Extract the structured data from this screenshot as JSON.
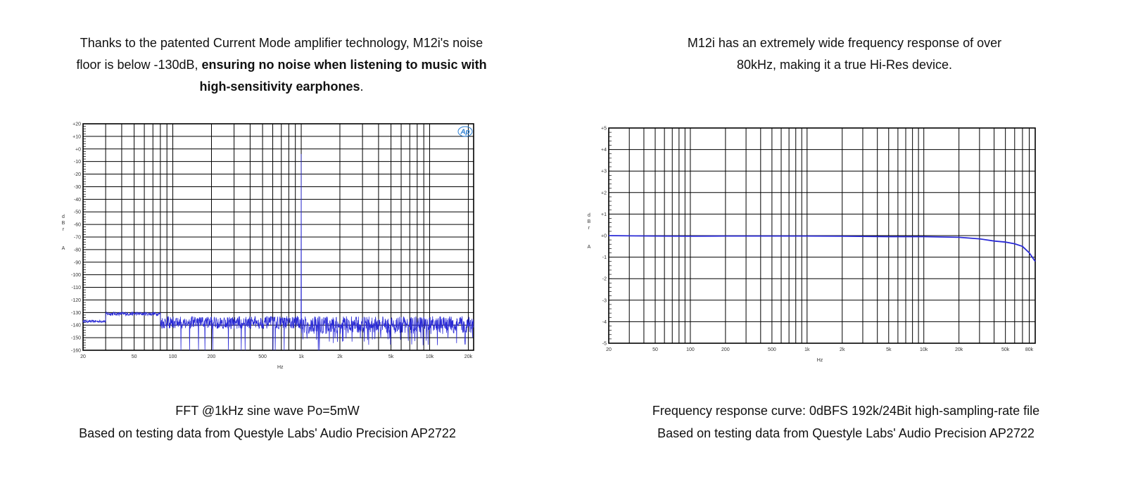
{
  "left": {
    "intro_line1": "Thanks to the patented Current Mode amplifier technology, M12i's noise",
    "intro_line2_plain": "floor is below -130dB, ",
    "intro_line2_bold": "ensuring no noise when listening to music with",
    "intro_line3_bold": "high-sensitivity earphones",
    "intro_line3_end": ".",
    "caption_line1": "FFT @1kHz sine wave Po=5mW",
    "caption_line2": "Based on testing data from Questyle Labs' Audio Precision AP2722",
    "logo_text": "Ap"
  },
  "right": {
    "intro_line1": "M12i has an extremely wide frequency response of over",
    "intro_line2": "80kHz, making it a true Hi-Res device.",
    "caption_line1": "Frequency response curve: 0dBFS 192k/24Bit high-sampling-rate file",
    "caption_line2": "Based on testing data from Questyle Labs' Audio Precision AP2722"
  },
  "colors": {
    "trace": "#2b2bd6",
    "grid": "#000000"
  },
  "chart_data": [
    {
      "type": "line",
      "xscale": "log",
      "xlim": [
        20,
        22000
      ],
      "ylim": [
        -160,
        20
      ],
      "x_ticks": [
        20,
        50,
        100,
        200,
        500,
        1000,
        2000,
        5000,
        10000,
        20000
      ],
      "x_tick_labels": [
        "20",
        "50",
        "100",
        "200",
        "500",
        "1k",
        "2k",
        "5k",
        "10k",
        "20k"
      ],
      "y_tick_labels": [
        "+20",
        "+10",
        "+0",
        "-10",
        "-20",
        "-30",
        "-40",
        "-50",
        "-60",
        "-70",
        "-80",
        "-90",
        "-100",
        "-110",
        "-120",
        "-130",
        "-140",
        "-150",
        "-160"
      ],
      "y_ticks": [
        20,
        10,
        0,
        -10,
        -20,
        -30,
        -40,
        -50,
        -60,
        -70,
        -80,
        -90,
        -100,
        -110,
        -120,
        -130,
        -140,
        -150,
        -160
      ],
      "xlabel": "Hz",
      "ylabel": "d B r A",
      "grid": true,
      "peak": {
        "x": 1000,
        "y": -4
      },
      "noise_floor_db": [
        -130,
        -148
      ]
    },
    {
      "type": "line",
      "xscale": "log",
      "xlim": [
        20,
        90000
      ],
      "ylim": [
        -5,
        5
      ],
      "x_ticks": [
        20,
        50,
        100,
        200,
        500,
        1000,
        2000,
        5000,
        10000,
        20000,
        50000,
        80000
      ],
      "x_tick_labels": [
        "20",
        "50",
        "100",
        "200",
        "500",
        "1k",
        "2k",
        "5k",
        "10k",
        "20k",
        "50k",
        "80k"
      ],
      "y_tick_labels": [
        "+5",
        "+4",
        "+3",
        "+2",
        "+1",
        "+0",
        "-1",
        "-2",
        "-3",
        "-4",
        "-5"
      ],
      "y_ticks": [
        5,
        4,
        3,
        2,
        1,
        0,
        -1,
        -2,
        -3,
        -4,
        -5
      ],
      "xlabel": "Hz",
      "ylabel": "d B r A",
      "grid": true,
      "series": [
        {
          "x": [
            20,
            50,
            100,
            200,
            500,
            1000,
            2000,
            5000,
            10000,
            20000,
            30000,
            40000,
            50000,
            60000,
            70000,
            80000,
            90000
          ],
          "values": [
            0.0,
            -0.02,
            -0.03,
            -0.02,
            -0.02,
            -0.02,
            -0.03,
            -0.05,
            -0.05,
            -0.08,
            -0.15,
            -0.25,
            -0.3,
            -0.38,
            -0.5,
            -0.8,
            -1.2
          ]
        }
      ]
    }
  ]
}
